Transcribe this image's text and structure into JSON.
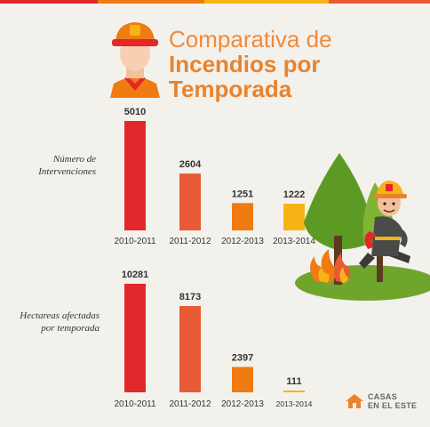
{
  "title": {
    "line1": "Comparativa de",
    "line2": "Incendios por",
    "line3": "Temporada"
  },
  "colors": {
    "title_light": "#f08a3c",
    "title_bold": "#e8832e",
    "red": "#e2282b",
    "orange_red": "#e85a35",
    "orange": "#ef7b12",
    "yellow": "#f7b316"
  },
  "chart_data": [
    {
      "type": "bar",
      "ylabel": "Número de Intervenciones",
      "categories": [
        "2010-2011",
        "2011-2012",
        "2012-2013",
        "2013-2014"
      ],
      "values": [
        5010,
        2604,
        1251,
        1222
      ]
    },
    {
      "type": "bar",
      "ylabel": "Hectareas afectadas por temporada",
      "categories": [
        "2010-2011",
        "2011-2012",
        "2012-2013",
        "2013-2014"
      ],
      "values": [
        10281,
        8173,
        2397,
        111
      ]
    }
  ],
  "logo": {
    "line1": "CASAS",
    "line2": "EN EL ESTE",
    "icon": "house-logo-icon"
  },
  "illustration": {
    "icons": [
      "firefighter-head-icon",
      "firefighter-running-icon",
      "tree-icon",
      "flame-icon"
    ]
  }
}
